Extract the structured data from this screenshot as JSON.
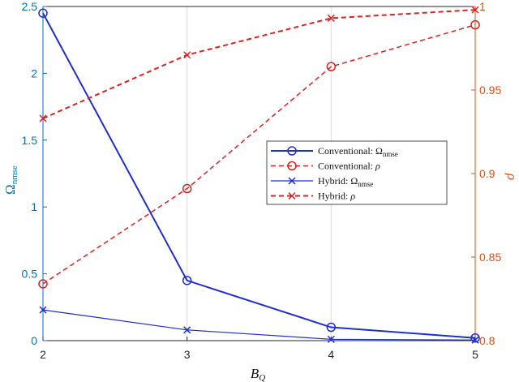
{
  "chart_data": {
    "type": "line",
    "title": "",
    "x": [
      2,
      3,
      4,
      5
    ],
    "xlabel": "B_Q",
    "xlim": [
      2,
      5
    ],
    "xticks": [
      "2",
      "3",
      "4",
      "5"
    ],
    "ylabel_left": "Ω_nmse",
    "ylim_left": [
      0,
      2.5
    ],
    "yticks_left": [
      "0",
      "0.5",
      "1",
      "1.5",
      "2",
      "2.5"
    ],
    "ylabel_right": "ρ",
    "ylim_right": [
      0.8,
      1.0
    ],
    "yticks_right": [
      "0.8",
      "0.85",
      "0.9",
      "0.95",
      "1"
    ],
    "grid": true,
    "legend_position": "center-right",
    "colors": {
      "left_axis": "#0072BD",
      "right_axis": "#D95319",
      "blue": "#1f2fd0",
      "red": "#e02020"
    },
    "series": [
      {
        "name": "Conventional: Ω_nmse",
        "axis": "left",
        "values": [
          2.45,
          0.45,
          0.1,
          0.02
        ],
        "color": "#1f2fd0",
        "style": "solid",
        "width": 2,
        "marker": "circle"
      },
      {
        "name": "Conventional: ρ",
        "axis": "right",
        "values": [
          0.834,
          0.891,
          0.964,
          0.989
        ],
        "color": "#e02020",
        "style": "dashed",
        "width": 1.5,
        "marker": "circle"
      },
      {
        "name": "Hybrid: Ω_nmse",
        "axis": "left",
        "values": [
          0.23,
          0.08,
          0.01,
          0.005
        ],
        "color": "#1f2fd0",
        "style": "solid",
        "width": 1.2,
        "marker": "x"
      },
      {
        "name": "Hybrid: ρ",
        "axis": "right",
        "values": [
          0.933,
          0.971,
          0.993,
          0.998
        ],
        "color": "#e02020",
        "style": "dashed",
        "width": 2,
        "marker": "x"
      }
    ]
  }
}
